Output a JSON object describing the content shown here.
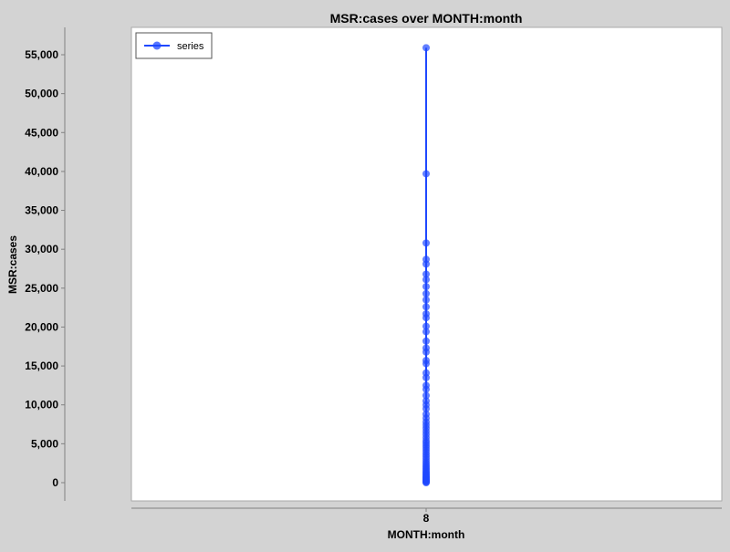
{
  "chart_data": {
    "type": "scatter",
    "title": "MSR:cases over MONTH:month",
    "xlabel": "MONTH:month",
    "ylabel": "MSR:cases",
    "x_categories": [
      "8"
    ],
    "ylim": [
      -1000,
      57000
    ],
    "y_ticks": [
      0,
      5000,
      10000,
      15000,
      20000,
      25000,
      30000,
      35000,
      40000,
      45000,
      50000,
      55000
    ],
    "y_tick_labels": [
      "0",
      "5,000",
      "10,000",
      "15,000",
      "20,000",
      "25,000",
      "30,000",
      "35,000",
      "40,000",
      "45,000",
      "50,000",
      "55,000"
    ],
    "grid": false,
    "legend_position": "top-left",
    "series": [
      {
        "name": "series",
        "color": "#1f48ff",
        "points": [
          {
            "x": "8",
            "y": 0
          },
          {
            "x": "8",
            "y": 80
          },
          {
            "x": "8",
            "y": 150
          },
          {
            "x": "8",
            "y": 230
          },
          {
            "x": "8",
            "y": 320
          },
          {
            "x": "8",
            "y": 400
          },
          {
            "x": "8",
            "y": 500
          },
          {
            "x": "8",
            "y": 600
          },
          {
            "x": "8",
            "y": 700
          },
          {
            "x": "8",
            "y": 820
          },
          {
            "x": "8",
            "y": 950
          },
          {
            "x": "8",
            "y": 1100
          },
          {
            "x": "8",
            "y": 1250
          },
          {
            "x": "8",
            "y": 1400
          },
          {
            "x": "8",
            "y": 1600
          },
          {
            "x": "8",
            "y": 1800
          },
          {
            "x": "8",
            "y": 2000
          },
          {
            "x": "8",
            "y": 2200
          },
          {
            "x": "8",
            "y": 2450
          },
          {
            "x": "8",
            "y": 2700
          },
          {
            "x": "8",
            "y": 3000
          },
          {
            "x": "8",
            "y": 3300
          },
          {
            "x": "8",
            "y": 3600
          },
          {
            "x": "8",
            "y": 3900
          },
          {
            "x": "8",
            "y": 4200
          },
          {
            "x": "8",
            "y": 4500
          },
          {
            "x": "8",
            "y": 4800
          },
          {
            "x": "8",
            "y": 5100
          },
          {
            "x": "8",
            "y": 5400
          },
          {
            "x": "8",
            "y": 5800
          },
          {
            "x": "8",
            "y": 6200
          },
          {
            "x": "8",
            "y": 6600
          },
          {
            "x": "8",
            "y": 7000
          },
          {
            "x": "8",
            "y": 7400
          },
          {
            "x": "8",
            "y": 7800
          },
          {
            "x": "8",
            "y": 8300
          },
          {
            "x": "8",
            "y": 8800
          },
          {
            "x": "8",
            "y": 9500
          },
          {
            "x": "8",
            "y": 10000
          },
          {
            "x": "8",
            "y": 10500
          },
          {
            "x": "8",
            "y": 11200
          },
          {
            "x": "8",
            "y": 12000
          },
          {
            "x": "8",
            "y": 12500
          },
          {
            "x": "8",
            "y": 13500
          },
          {
            "x": "8",
            "y": 14100
          },
          {
            "x": "8",
            "y": 15300
          },
          {
            "x": "8",
            "y": 15700
          },
          {
            "x": "8",
            "y": 16800
          },
          {
            "x": "8",
            "y": 17300
          },
          {
            "x": "8",
            "y": 18200
          },
          {
            "x": "8",
            "y": 19400
          },
          {
            "x": "8",
            "y": 20100
          },
          {
            "x": "8",
            "y": 21200
          },
          {
            "x": "8",
            "y": 21700
          },
          {
            "x": "8",
            "y": 22600
          },
          {
            "x": "8",
            "y": 23500
          },
          {
            "x": "8",
            "y": 24300
          },
          {
            "x": "8",
            "y": 25200
          },
          {
            "x": "8",
            "y": 26100
          },
          {
            "x": "8",
            "y": 26800
          },
          {
            "x": "8",
            "y": 28100
          },
          {
            "x": "8",
            "y": 28700
          },
          {
            "x": "8",
            "y": 30800
          },
          {
            "x": "8",
            "y": 39700
          },
          {
            "x": "8",
            "y": 55900
          }
        ]
      }
    ]
  }
}
